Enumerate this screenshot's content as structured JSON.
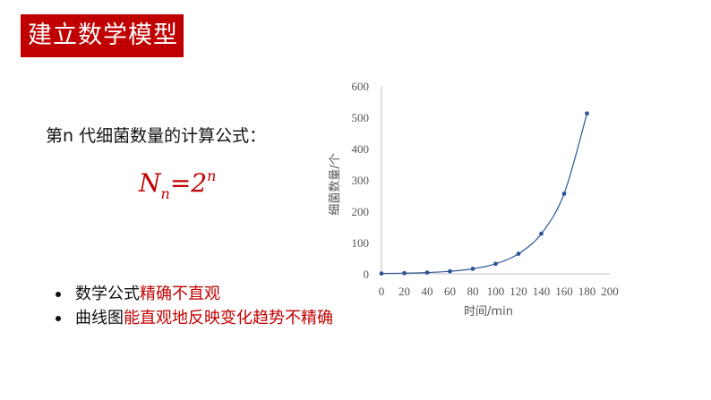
{
  "slide": {
    "title": "建立数学模型",
    "formula_label": "第n 代细菌数量的计算公式：",
    "formula": {
      "base": "N",
      "subscript": "n",
      "equals": "=2",
      "exponent": "n"
    },
    "bullets": [
      {
        "plain": "数学公式",
        "highlight": "精确不直观"
      },
      {
        "plain": "曲线图",
        "highlight": "能直观地反映变化趋势不精确"
      }
    ],
    "accent_color": "#c00000"
  },
  "chart_data": {
    "type": "line",
    "title": "",
    "xlabel": "时间/min",
    "ylabel": "细菌数量/个",
    "x": [
      0,
      20,
      40,
      60,
      80,
      100,
      120,
      140,
      160,
      180
    ],
    "series": [
      {
        "values": [
          1,
          2,
          4,
          8,
          16,
          32,
          64,
          128,
          256,
          512
        ],
        "color": "#2e5597"
      }
    ],
    "xlim": [
      0,
      200
    ],
    "ylim": [
      0,
      600
    ],
    "xticks": [
      0,
      20,
      40,
      60,
      80,
      100,
      120,
      140,
      160,
      180,
      200
    ],
    "yticks": [
      0,
      100,
      200,
      300,
      400,
      500,
      600
    ],
    "grid": false,
    "legend": "none"
  }
}
